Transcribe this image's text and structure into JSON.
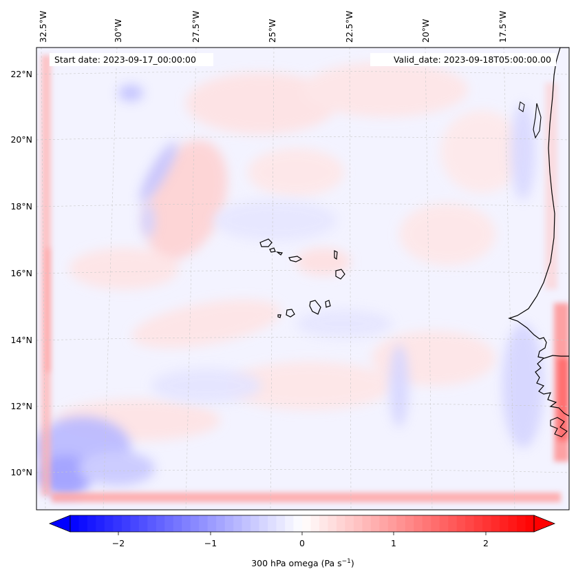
{
  "map": {
    "start_date": "Start date: 2023-09-17_00:00:00",
    "valid_date": "Valid_date: 2023-09-18T05:00:00.00",
    "lon_labels": [
      "32.5°W",
      "30°W",
      "27.5°W",
      "25°W",
      "22.5°W",
      "20°W",
      "17.5°W"
    ],
    "lat_labels": [
      "22°N",
      "20°N",
      "18°N",
      "16°N",
      "14°N",
      "12°N",
      "10°N"
    ]
  },
  "colorbar": {
    "label_text": "300 hPa omega (Pa s",
    "label_sup": "−1",
    "label_close": ")",
    "ticks": [
      "−2",
      "−1",
      "0",
      "1",
      "2"
    ],
    "vmin": -2.7,
    "vmax": 2.7,
    "colors": {
      "negative": "#0000ff",
      "neutral": "#ffffff",
      "positive": "#ff0000"
    }
  }
}
